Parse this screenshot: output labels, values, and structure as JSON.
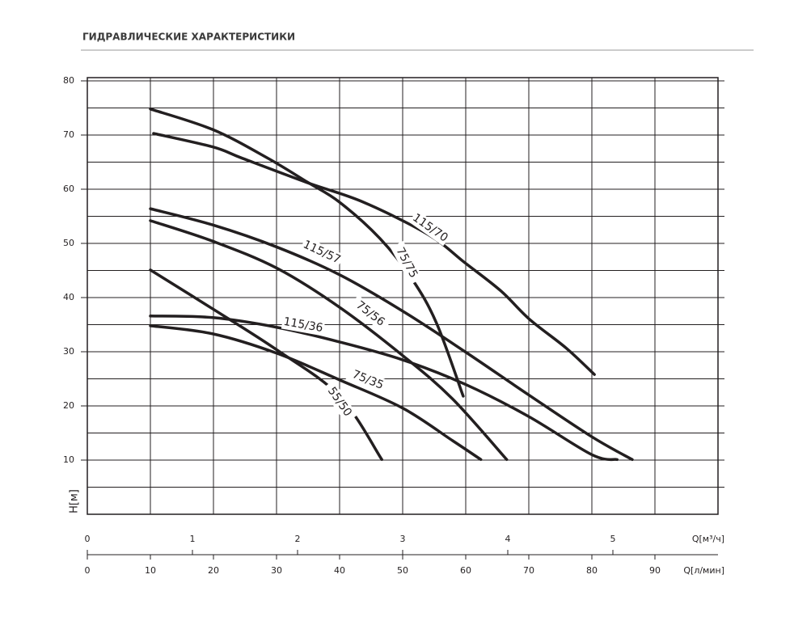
{
  "chart_data": {
    "type": "line",
    "title": "ГИДРАВЛИЧЕСКИЕ ХАРАКТЕРИСТИКИ",
    "y_label": "H[м]",
    "x_label": "Q[л/мин]",
    "x2_label": "Q[м³/ч]",
    "xlim": [
      0,
      100
    ],
    "xticks": [
      0,
      10,
      20,
      30,
      40,
      50,
      60,
      70,
      80,
      90
    ],
    "x2lim": [
      0,
      6
    ],
    "x2ticks": [
      0,
      1,
      2,
      3,
      4,
      5
    ],
    "ylim": [
      0,
      80
    ],
    "yticks": [
      10,
      20,
      30,
      40,
      50,
      60,
      70,
      80
    ],
    "grid": true,
    "series": [
      {
        "name": "115/70",
        "color": "#231f20",
        "x": [
          10.5,
          19.9,
          24.6,
          34.9,
          43.8,
          54.1,
          59.9,
          65.6,
          70.1,
          75.9,
          80.4
        ],
        "values": [
          70.3,
          67.8,
          65.7,
          61.2,
          57.6,
          51.6,
          46.4,
          41.2,
          36.0,
          30.7,
          25.8
        ]
      },
      {
        "name": "75/75",
        "color": "#231f20",
        "x": [
          10,
          19.9,
          28.5,
          34.9,
          40,
          46.4,
          51.5,
          55.4,
          59.6
        ],
        "values": [
          74.8,
          71.0,
          65.8,
          61.3,
          57.6,
          50.9,
          43.4,
          35.2,
          21.8
        ]
      },
      {
        "name": "115/57",
        "color": "#231f20",
        "x": [
          10,
          19.9,
          30.1,
          40,
          50,
          59.9,
          69.9,
          80,
          86.4
        ],
        "values": [
          56.4,
          53.4,
          49.3,
          44.2,
          37.5,
          30.0,
          22.1,
          14.3,
          10.1
        ]
      },
      {
        "name": "75/56",
        "color": "#231f20",
        "x": [
          10,
          19.9,
          30.1,
          40,
          50,
          57.9,
          66.5
        ],
        "values": [
          54.2,
          50.4,
          45.4,
          38.2,
          29.3,
          21.3,
          10.1
        ]
      },
      {
        "name": "115/36",
        "color": "#231f20",
        "x": [
          10,
          19.9,
          30.1,
          40,
          50,
          59.9,
          69.9,
          80,
          84
        ],
        "values": [
          36.6,
          36.3,
          34.5,
          31.8,
          28.5,
          24.0,
          18.1,
          11.0,
          10.1
        ]
      },
      {
        "name": "75/35",
        "color": "#231f20",
        "x": [
          10,
          19.9,
          30.1,
          40,
          50,
          57.9,
          62.4
        ],
        "values": [
          34.8,
          33.3,
          29.7,
          24.8,
          19.6,
          13.6,
          10.1
        ]
      },
      {
        "name": "55/50",
        "color": "#231f20",
        "x": [
          10,
          19.9,
          30.1,
          40,
          46.7
        ],
        "values": [
          45.1,
          37.9,
          30.3,
          21.8,
          10.1
        ]
      }
    ]
  }
}
